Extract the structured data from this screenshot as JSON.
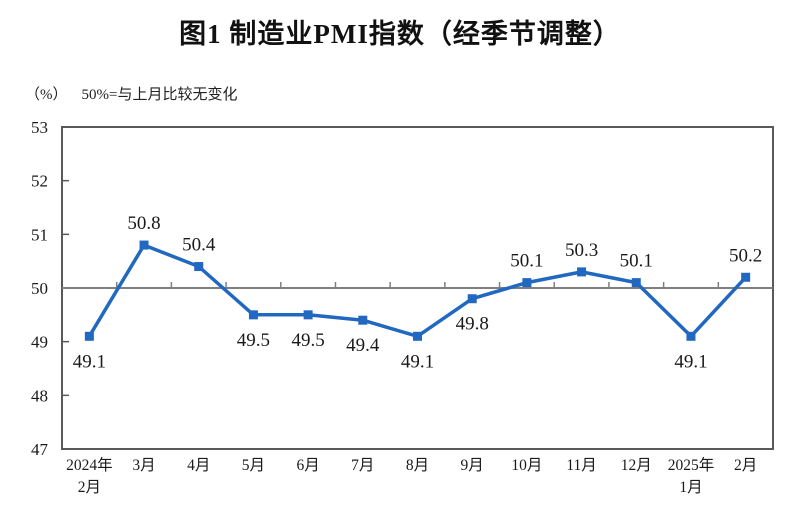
{
  "title": "图1  制造业PMI指数（经季节调整）",
  "subtitle": {
    "unit_label": "（%）",
    "reference_note": "50%=与上月比较无变化"
  },
  "colors": {
    "series": "#2068c0",
    "reference_line": "#7f7f7f",
    "frame": "#595959",
    "text": "#1a1a1a"
  },
  "chart_data": {
    "type": "line",
    "title": "图1 制造业PMI指数（经季节调整）",
    "categories": [
      [
        "2024年",
        "2月"
      ],
      [
        "3月"
      ],
      [
        "4月"
      ],
      [
        "5月"
      ],
      [
        "6月"
      ],
      [
        "7月"
      ],
      [
        "8月"
      ],
      [
        "9月"
      ],
      [
        "10月"
      ],
      [
        "11月"
      ],
      [
        "12月"
      ],
      [
        "2025年",
        "1月"
      ],
      [
        "2月"
      ]
    ],
    "values": [
      49.1,
      50.8,
      50.4,
      49.5,
      49.5,
      49.4,
      49.1,
      49.8,
      50.1,
      50.3,
      50.1,
      49.1,
      50.2
    ],
    "ylabel": "（%）",
    "ylim": [
      47,
      53
    ],
    "ytick_step": 1,
    "yticks": [
      47,
      48,
      49,
      50,
      51,
      52,
      53
    ],
    "reference_line": 50,
    "reference_note": "50%=与上月比较无变化",
    "grid": "reference-line-only",
    "legend_position": "none",
    "marker": "square",
    "series_color": "#2068c0"
  }
}
